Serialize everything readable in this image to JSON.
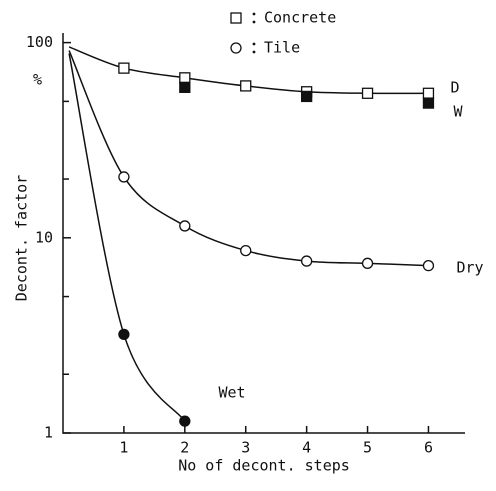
{
  "chart_data": {
    "type": "line",
    "y_label": "Decont. factor",
    "y_unit": "%",
    "x_label": "No of decont. steps",
    "log_y": true,
    "xlim": [
      0,
      6.6
    ],
    "ylim": [
      1,
      112
    ],
    "xticks": [
      1,
      2,
      3,
      4,
      5,
      6
    ],
    "yticks": [
      1,
      10,
      100
    ],
    "yminor": [
      2,
      5,
      20,
      50
    ],
    "legend": [
      {
        "symbol": "square",
        "label": "Concrete"
      },
      {
        "symbol": "circle",
        "label": "Tile"
      }
    ],
    "series": [
      {
        "label": "D",
        "marker": "square",
        "filled": false,
        "x": [
          1,
          2,
          3,
          4,
          5,
          6
        ],
        "values": [
          74,
          66,
          60,
          56,
          55,
          55
        ],
        "curve_start": {
          "x": 0.1,
          "value": 95
        }
      },
      {
        "label": "W",
        "marker": "square",
        "filled": true,
        "x": [
          2,
          4,
          6
        ],
        "values": [
          59,
          53,
          49
        ]
      },
      {
        "label": "Dry",
        "marker": "circle",
        "filled": false,
        "x": [
          1,
          2,
          3,
          4,
          5,
          6
        ],
        "values": [
          20.5,
          11.5,
          8.6,
          7.6,
          7.4,
          7.2
        ],
        "curve_start": {
          "x": 0.1,
          "value": 91
        }
      },
      {
        "label": "Wet",
        "marker": "circle",
        "filled": true,
        "x": [
          1,
          2
        ],
        "values": [
          3.2,
          1.15
        ],
        "curve_start": {
          "x": 0.1,
          "value": 88
        }
      }
    ]
  }
}
